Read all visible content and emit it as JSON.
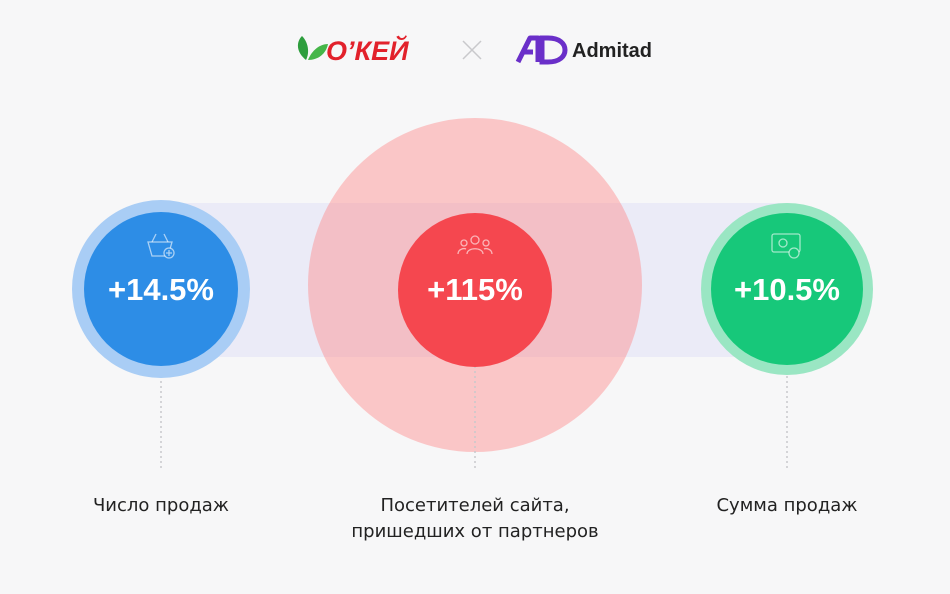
{
  "header": {
    "brand": "О’КЕЙ",
    "partner": "Admitad"
  },
  "metrics": [
    {
      "value": "+14.5%",
      "label_lines": [
        "Число продаж"
      ]
    },
    {
      "value": "+115%",
      "label_lines": [
        "Посетителей сайта,",
        "пришедших от партнеров"
      ]
    },
    {
      "value": "+10.5%",
      "label_lines": [
        "Сумма продаж"
      ]
    }
  ]
}
